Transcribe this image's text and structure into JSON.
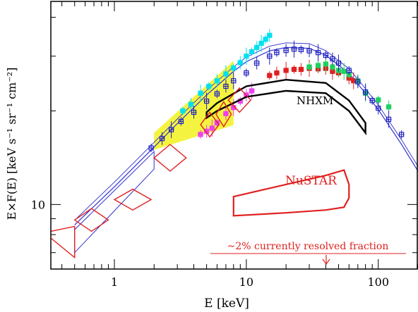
{
  "chart_data": {
    "type": "scatter",
    "title": "",
    "xlabel": "E [keV]",
    "ylabel": "E×F(E)  [keV s⁻¹ sr⁻¹ cm⁻²]",
    "xscale": "log",
    "yscale": "log",
    "xlim": [
      0.33,
      200
    ],
    "ylim": [
      6.2,
      45
    ],
    "grid": false,
    "legend": "none",
    "x_ticks": [
      {
        "value": 1,
        "label": "1"
      },
      {
        "value": 10,
        "label": "10"
      },
      {
        "value": 100,
        "label": "100"
      }
    ],
    "y_ticks": [
      {
        "value": 10,
        "label": "10"
      }
    ],
    "colors": {
      "axis": "#000000",
      "model": "#3030d0",
      "nustar": "#e02020",
      "nhxm": "#000000",
      "yellow": "#f0f000",
      "cyan": "#00e0f0",
      "magenta": "#f040f0",
      "green": "#20d060",
      "blue_data": "#2020c0"
    },
    "annotations": {
      "nhxm": "NHXM",
      "nustar": "NuSTAR",
      "resolved": "~2% currently resolved fraction"
    },
    "model_curve": {
      "x": [
        0.5,
        1,
        2,
        3,
        5,
        8,
        10,
        15,
        20,
        30,
        40,
        60,
        80,
        100,
        150,
        200
      ],
      "y": [
        8.6,
        11.4,
        15.3,
        18.2,
        22.5,
        26.8,
        28.8,
        31.2,
        32,
        31.8,
        30.2,
        26.4,
        22.8,
        20.2,
        15.6,
        12.8
      ]
    },
    "blue_data": {
      "x": [
        1.9,
        2.3,
        2.7,
        3.2,
        4,
        5,
        6,
        7,
        8,
        10,
        12,
        15,
        17,
        20,
        23,
        26,
        30,
        35,
        40,
        45,
        50,
        60,
        70,
        80,
        90,
        100,
        120,
        150
      ],
      "y": [
        15.2,
        16.3,
        17.4,
        18.5,
        19.8,
        21.5,
        22.7,
        24,
        25,
        26.5,
        28.5,
        30,
        30.8,
        31.3,
        31.6,
        31.5,
        31.2,
        30.8,
        30.2,
        29.4,
        28.5,
        27,
        24.8,
        23,
        21.6,
        20.4,
        18.8,
        16.8
      ]
    },
    "cyan_data": {
      "x": [
        3.3,
        3.8,
        4.5,
        5.2,
        6,
        7,
        8,
        9,
        10,
        11,
        12,
        13,
        14,
        15
      ],
      "y": [
        20,
        21,
        22.8,
        24,
        25,
        26.3,
        27.5,
        28.6,
        30,
        31,
        32,
        33,
        34,
        35
      ]
    },
    "magenta_data": {
      "x": [
        4.5,
        5,
        5.5,
        6,
        7,
        8,
        9,
        10,
        11
      ],
      "y": [
        16.8,
        17.2,
        17.6,
        18.3,
        19.6,
        20.5,
        21.5,
        22.5,
        23.2
      ]
    },
    "green_data": {
      "x": [
        30,
        35,
        40,
        45,
        50,
        55,
        60,
        70,
        80,
        100,
        120
      ],
      "y": [
        27.7,
        28,
        28.3,
        27.7,
        27,
        26.8,
        26.2,
        25,
        22.8,
        21.7,
        20.6
      ]
    },
    "red_data": {
      "x": [
        15,
        17,
        20,
        23,
        26,
        30,
        35,
        40,
        45,
        50,
        60,
        65
      ],
      "y": [
        26,
        26.5,
        27,
        27.2,
        27.2,
        27.4,
        27.3,
        27.4,
        26.8,
        26.5,
        25.5,
        25
      ]
    },
    "yellow_band": {
      "x": [
        2,
        8
      ],
      "y_low": [
        15,
        18
      ],
      "y_high": [
        17,
        29
      ]
    },
    "nhxm_polygon": {
      "x": [
        5,
        6,
        10,
        20,
        40,
        60,
        80,
        80,
        60,
        40,
        20,
        10,
        6,
        5
      ],
      "y": [
        19,
        20,
        22.2,
        23.2,
        22.8,
        20,
        17,
        18.3,
        21.6,
        24.6,
        25.2,
        24,
        21.2,
        19.8
      ]
    },
    "nustar_polygon": {
      "x": [
        8,
        20,
        40,
        55,
        60,
        60,
        55,
        40,
        20,
        8
      ],
      "y": [
        10.6,
        11.6,
        12.4,
        12.9,
        11.6,
        10.5,
        9.8,
        9.6,
        9.4,
        9.2
      ]
    },
    "rhombuses": [
      {
        "xmin": 0.5,
        "xmax": 0.9,
        "ymin": 8.2,
        "ymax": 9.7
      },
      {
        "xmin": 1.0,
        "xmax": 1.9,
        "ymin": 9.6,
        "ymax": 11.2
      },
      {
        "xmin": 2.0,
        "xmax": 3.5,
        "ymin": 12.8,
        "ymax": 15.6
      },
      {
        "xmin": 4.5,
        "xmax": 6.2,
        "ymin": 16.5,
        "ymax": 19.8
      },
      {
        "xmin": 5.9,
        "xmax": 7.7,
        "ymin": 17.8,
        "ymax": 21.4
      },
      {
        "xmin": 7.3,
        "xmax": 10.8,
        "ymin": 19.8,
        "ymax": 23.7
      }
    ],
    "rhombus_edge": {
      "x": [
        0.33,
        0.5,
        0.5,
        0.33
      ],
      "y": [
        7.8,
        6.75,
        8.5,
        8.2
      ]
    },
    "low_band": {
      "x": [
        0.5,
        2.0
      ],
      "y_low": [
        7.0,
        13.0
      ],
      "y_high": [
        8.3,
        14.8
      ]
    }
  }
}
